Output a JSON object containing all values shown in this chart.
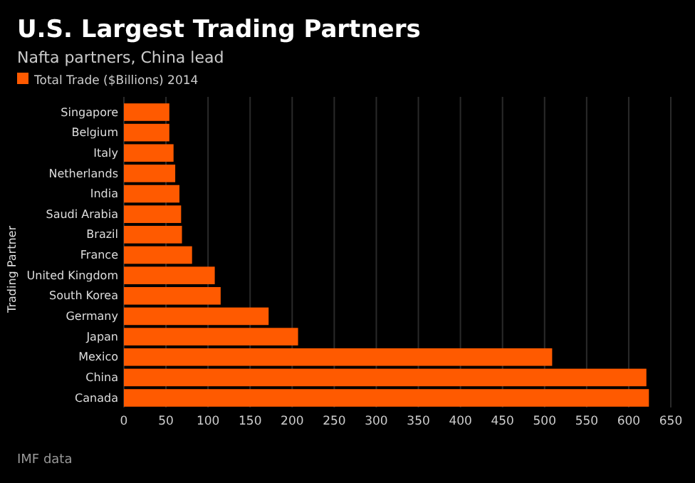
{
  "chart_data": {
    "type": "bar",
    "orientation": "horizontal",
    "title": "U.S. Largest Trading Partners",
    "subtitle": "Nafta partners, China lead",
    "ylabel": "Trading Partner",
    "categories": [
      "Singapore",
      "Belgium",
      "Italy",
      "Netherlands",
      "India",
      "Saudi Arabia",
      "Brazil",
      "France",
      "United Kingdom",
      "South Korea",
      "Germany",
      "Japan",
      "Mexico",
      "China",
      "Canada"
    ],
    "series": [
      {
        "name": "Total Trade ($Billions) 2014",
        "color": "#ff5a00",
        "values": [
          54,
          54,
          59,
          61,
          66,
          68,
          69,
          81,
          108,
          115,
          172,
          207,
          509,
          621,
          624
        ]
      }
    ],
    "xlim": [
      0,
      650
    ],
    "xticks": [
      0,
      50,
      100,
      150,
      200,
      250,
      300,
      350,
      400,
      450,
      500,
      550,
      600,
      650
    ],
    "grid": "x",
    "legend": "top left",
    "annotations": [
      "IMF data"
    ]
  }
}
